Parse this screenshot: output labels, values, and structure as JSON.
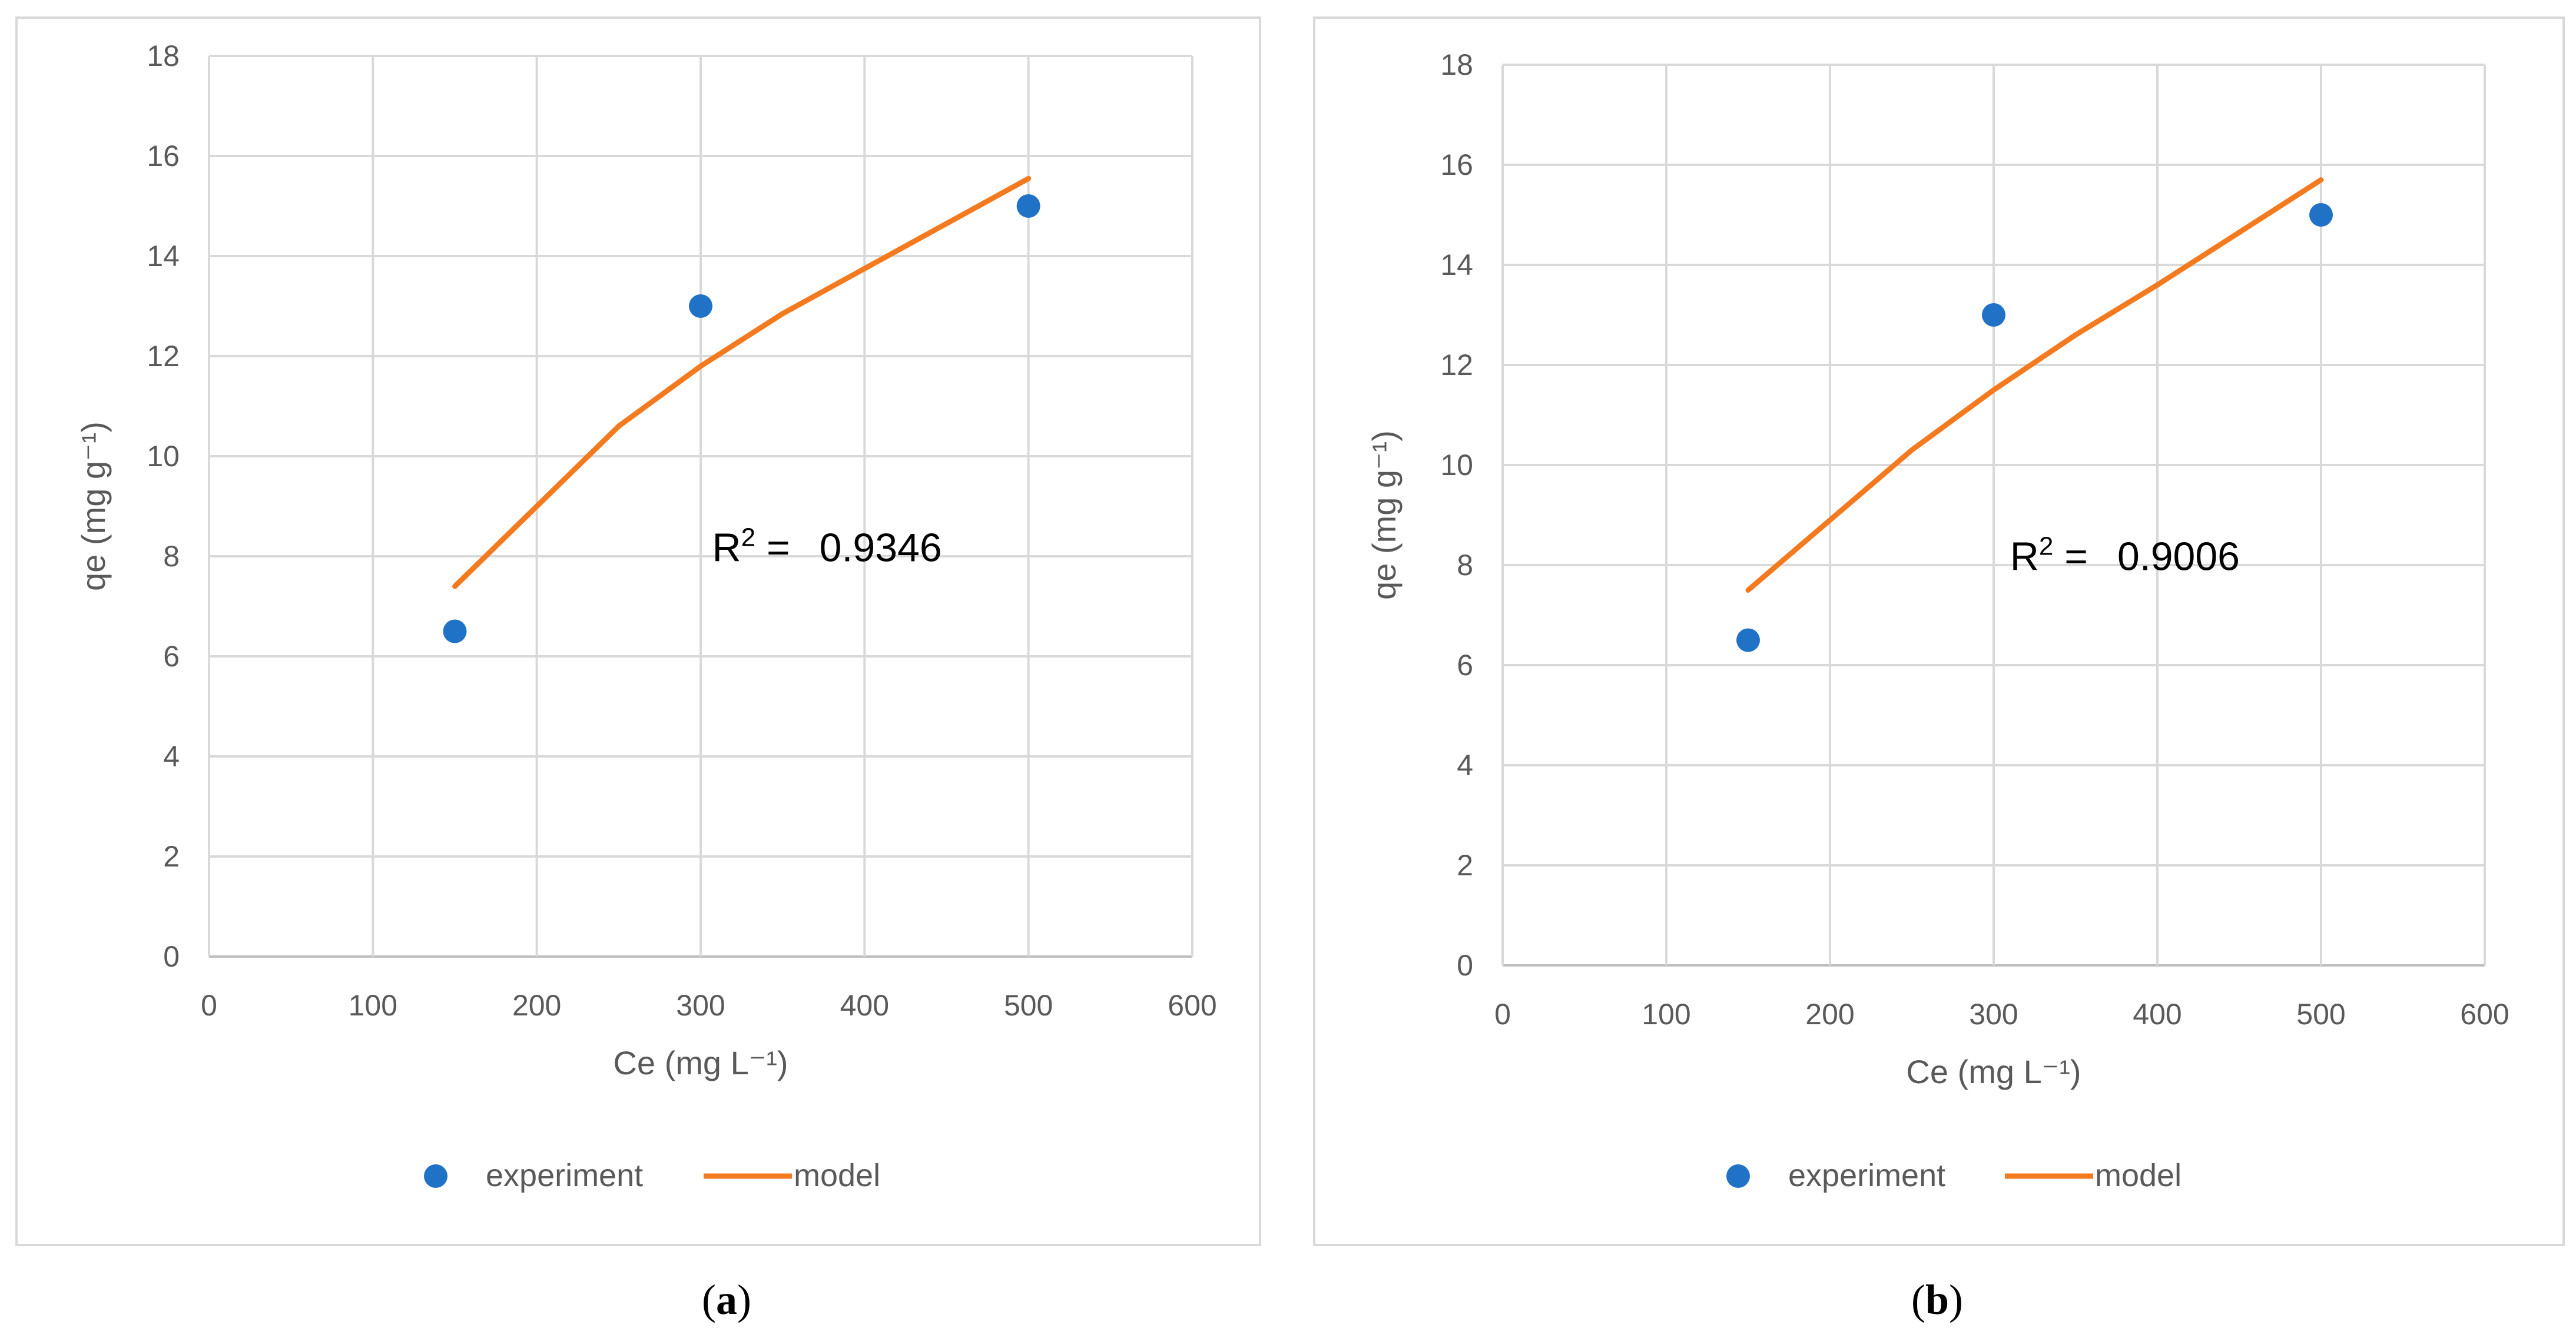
{
  "chart_data": [
    {
      "type": "scatter",
      "panel": "a",
      "xlabel": "Ce (mg L⁻¹)",
      "ylabel": "qe (mg g⁻¹)",
      "xlim": [
        0,
        600
      ],
      "ylim": [
        0,
        18
      ],
      "xticks": [
        0,
        100,
        200,
        300,
        400,
        500,
        600
      ],
      "yticks": [
        0,
        2,
        4,
        6,
        8,
        10,
        12,
        14,
        16,
        18
      ],
      "grid": true,
      "legend_position": "bottom",
      "series": [
        {
          "name": "experiment",
          "kind": "scatter",
          "color": "#1f72c5",
          "x": [
            150,
            300,
            500
          ],
          "y": [
            6.5,
            13.0,
            15.0
          ]
        },
        {
          "name": "model",
          "kind": "line",
          "color": "#f47a1f",
          "x": [
            150,
            200,
            250,
            300,
            350,
            400,
            450,
            500
          ],
          "y": [
            7.4,
            9.0,
            10.6,
            11.8,
            12.85,
            13.75,
            14.65,
            15.55
          ]
        }
      ],
      "annotation": {
        "r2_label": "R",
        "r2_sup": "2",
        "r2_eq": " =",
        "r2_value": "0.9346",
        "at_x": 307,
        "at_y": 7.9
      },
      "panel_label": "a"
    },
    {
      "type": "scatter",
      "panel": "b",
      "xlabel": "Ce (mg L⁻¹)",
      "ylabel": "qe (mg g⁻¹)",
      "xlim": [
        0,
        600
      ],
      "ylim": [
        0,
        18
      ],
      "xticks": [
        0,
        100,
        200,
        300,
        400,
        500,
        600
      ],
      "yticks": [
        0,
        2,
        4,
        6,
        8,
        10,
        12,
        14,
        16,
        18
      ],
      "grid": true,
      "legend_position": "bottom",
      "series": [
        {
          "name": "experiment",
          "kind": "scatter",
          "color": "#1f72c5",
          "x": [
            150,
            300,
            500
          ],
          "y": [
            6.5,
            13.0,
            15.0
          ]
        },
        {
          "name": "model",
          "kind": "line",
          "color": "#f47a1f",
          "x": [
            150,
            200,
            250,
            300,
            350,
            400,
            450,
            500
          ],
          "y": [
            7.5,
            8.9,
            10.3,
            11.5,
            12.6,
            13.6,
            14.65,
            15.7
          ]
        }
      ],
      "annotation": {
        "r2_label": "R",
        "r2_sup": "2",
        "r2_eq": " =",
        "r2_value": "0.9006",
        "at_x": 310,
        "at_y": 7.9
      },
      "panel_label": "b"
    }
  ]
}
